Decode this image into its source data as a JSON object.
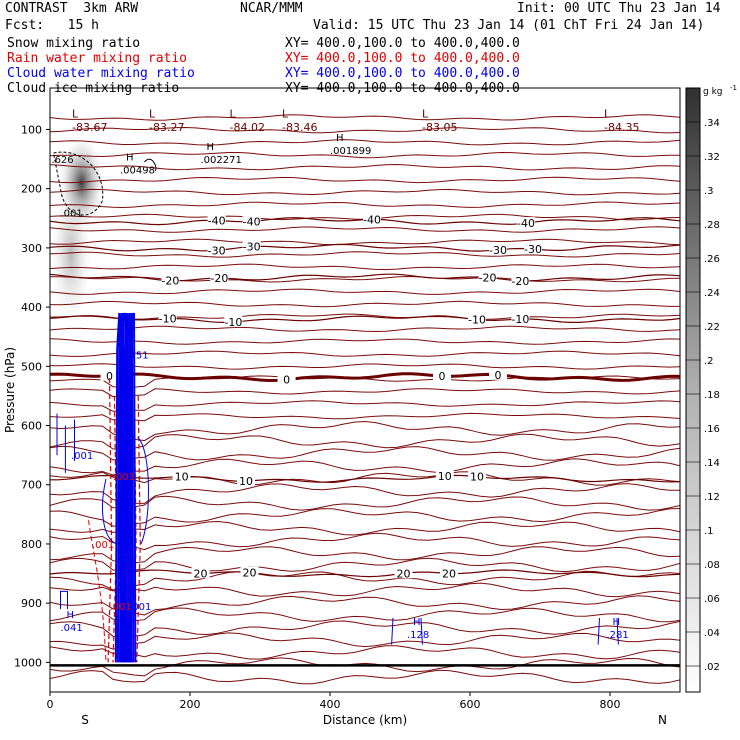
{
  "header": {
    "model": "CONTRAST  3km ARW",
    "org": "NCAR/MMM",
    "init": "Init: 00 UTC Thu 23 Jan 14",
    "fcst": "Fcst:   15 h",
    "valid": "Valid: 15 UTC Thu 23 Jan 14 (01 ChT Fri 24 Jan 14)"
  },
  "fields": [
    {
      "name": "Snow mixing ratio",
      "xy": "",
      "color": "#000000"
    },
    {
      "name": "Rain water mixing ratio",
      "xy": "XY= 400.0,100.0 to 400.0,400.0",
      "color": "#e00000"
    },
    {
      "name": "Cloud water mixing ratio",
      "xy": "XY= 400.0,100.0 to 400.0,400.0",
      "color": "#0000ee"
    },
    {
      "name": "Cloud ice mixing ratio",
      "xy": "XY= 400.0,100.0 to 400.0,400.0",
      "color": "#000000"
    }
  ],
  "snow_xy": "XY= 400.0,100.0 to 400.0,400.0",
  "chart_data": {
    "type": "contour-cross-section",
    "xlabel": "Distance (km)",
    "ylabel": "Pressure (hPa)",
    "xlim": [
      0,
      900
    ],
    "ylim": [
      1050,
      30
    ],
    "x_ticks": [
      0,
      200,
      400,
      600,
      800
    ],
    "y_ticks": [
      100,
      200,
      300,
      400,
      500,
      600,
      700,
      800,
      900,
      1000
    ],
    "endpoints": {
      "left": "S",
      "right": "N"
    },
    "temperature_contours": {
      "color": "#800000",
      "levels": [
        {
          "label": "-40",
          "p": 255,
          "labels_at": [
            238,
            288,
            460,
            680
          ]
        },
        {
          "label": "-30",
          "p": 300,
          "labels_at": [
            238,
            288,
            640,
            690
          ]
        },
        {
          "label": "-20",
          "p": 350,
          "labels_at": [
            172,
            242,
            625,
            672
          ]
        },
        {
          "label": "-10",
          "p": 420,
          "labels_at": [
            168,
            262,
            610,
            672
          ]
        },
        {
          "label": "0",
          "p": 518,
          "labels_at": [
            85,
            338,
            560,
            640
          ],
          "emphasis": true
        },
        {
          "label": "10",
          "p": 690,
          "labels_at": [
            188,
            280,
            564,
            610
          ]
        },
        {
          "label": "20",
          "p": 850,
          "labels_at": [
            215,
            285,
            505,
            570
          ]
        }
      ]
    },
    "max_temperatures": [
      {
        "label": "-83.67",
        "x": 20
      },
      {
        "label": "-83.27",
        "x": 130
      },
      {
        "label": "-84.02",
        "x": 245
      },
      {
        "label": "-83.46",
        "x": 320
      },
      {
        "label": "-83.05",
        "x": 520
      },
      {
        "label": "-84.35",
        "x": 780
      }
    ],
    "markers": [
      {
        "type": "H",
        "value": ".00498",
        "x": 100,
        "p": 168,
        "color": "#000000"
      },
      {
        "type": "H",
        "value": ".002271",
        "x": 215,
        "p": 150,
        "color": "#000000"
      },
      {
        "type": "H",
        "value": ".001899",
        "x": 400,
        "p": 135,
        "color": "#000000"
      },
      {
        "type": "",
        "value": ".626",
        "x": 2,
        "p": 150,
        "color": "#000000"
      },
      {
        "type": "",
        "value": ".001",
        "x": 15,
        "p": 240,
        "color": "#000000"
      },
      {
        "type": "H",
        "value": ".041",
        "x": 15,
        "p": 940,
        "color": "#0000ee"
      },
      {
        "type": "H",
        "value": ".128",
        "x": 510,
        "p": 952,
        "color": "#0000ee"
      },
      {
        "type": "H",
        "value": ".281",
        "x": 795,
        "p": 952,
        "color": "#0000ee"
      },
      {
        "type": "",
        "value": "1.151",
        "x": 100,
        "p": 480,
        "color": "#0000ee"
      },
      {
        "type": "",
        "value": ".001",
        "x": 30,
        "p": 650,
        "color": "#0000ee"
      },
      {
        "type": "",
        "value": ".001",
        "x": 90,
        "p": 685,
        "color": "#e00000"
      },
      {
        "type": "",
        "value": ".001",
        "x": 60,
        "p": 800,
        "color": "#e00000"
      },
      {
        "type": "",
        "value": ".001",
        "x": 85,
        "p": 905,
        "color": "#e00000"
      },
      {
        "type": "",
        "value": ".001",
        "x": 113,
        "p": 905,
        "color": "#0000ee"
      }
    ],
    "color_bar": {
      "unit": "g kg",
      "unit_exp": "-1",
      "labels": [
        ".34",
        ".32",
        ".3",
        ".28",
        ".26",
        ".24",
        ".22",
        ".2",
        ".18",
        ".16",
        ".14",
        ".12",
        ".1",
        ".08",
        ".06",
        ".04",
        ".02"
      ]
    }
  }
}
